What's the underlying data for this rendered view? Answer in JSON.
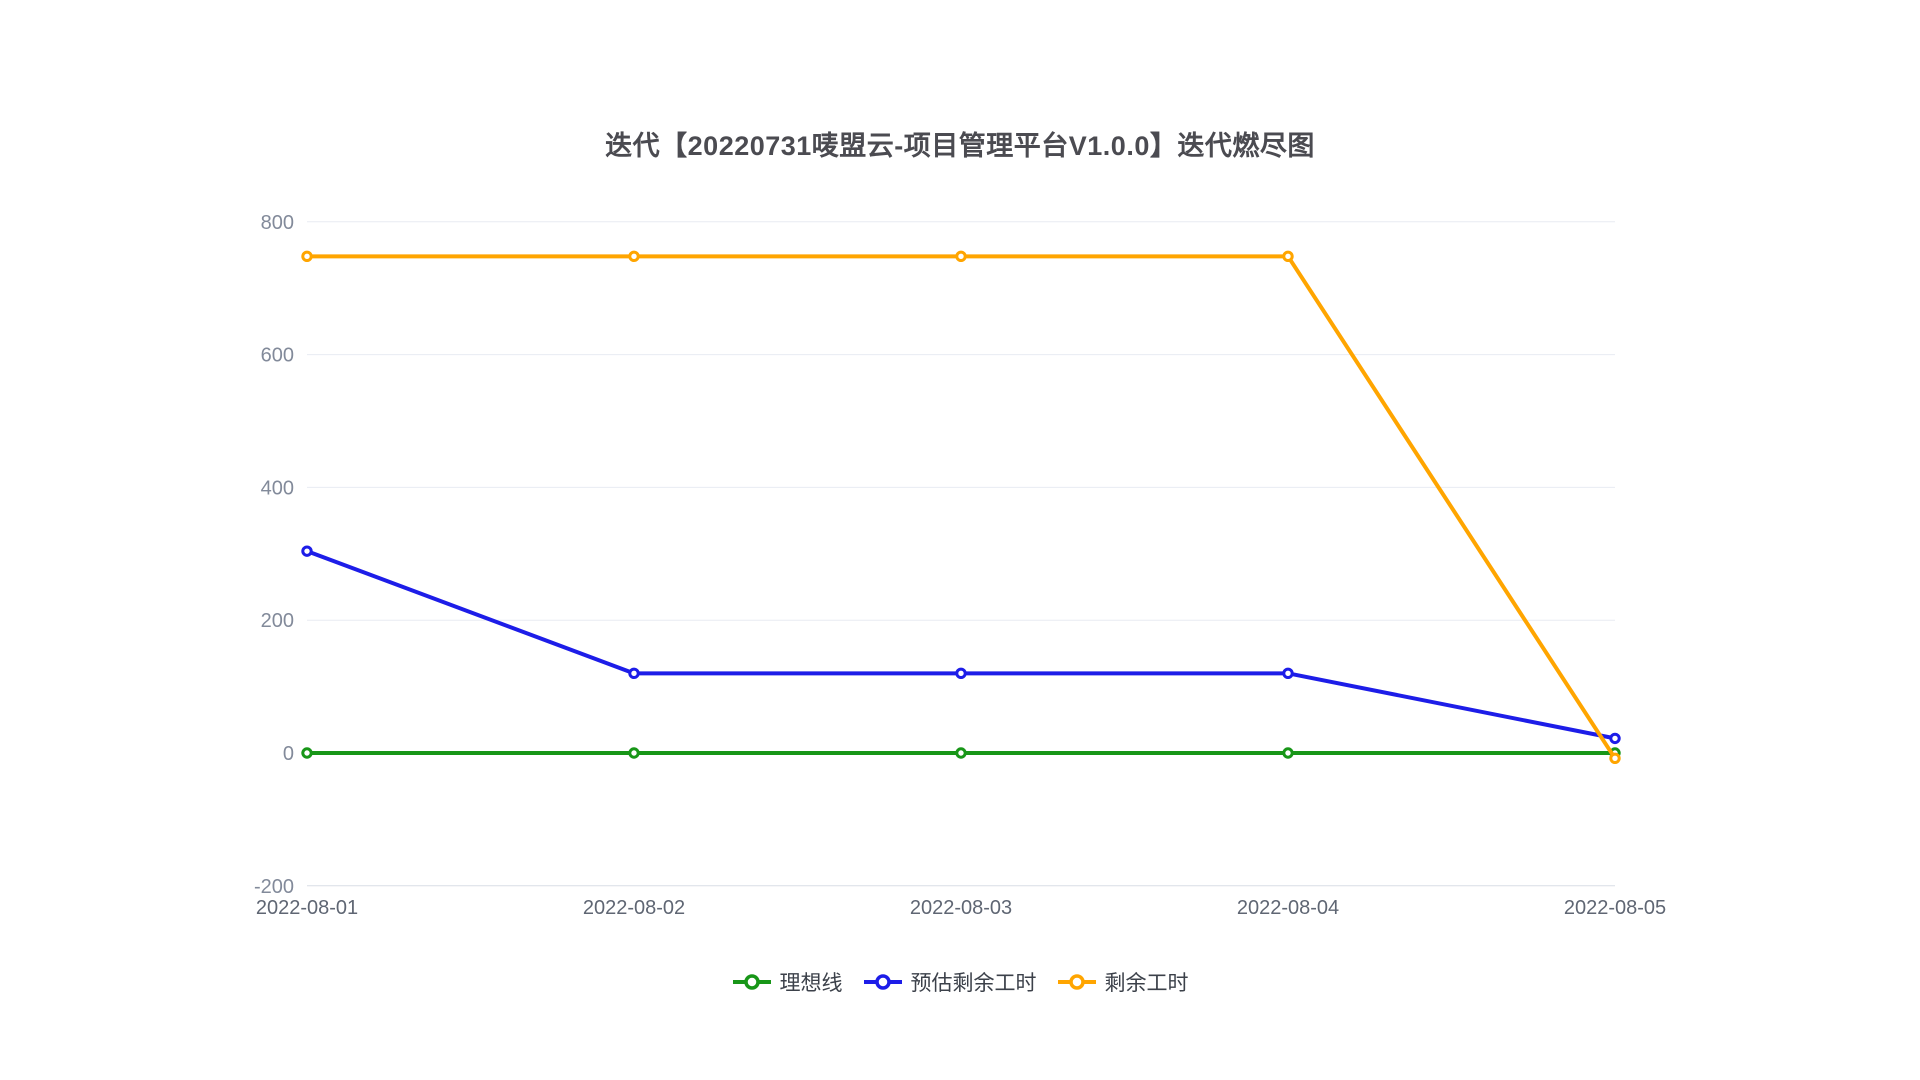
{
  "page": {
    "background": "#ffffff"
  },
  "chart_data": {
    "type": "line",
    "title": "迭代【20220731唛盟云-项目管理平台V1.0.0】迭代燃尽图",
    "x_labels": [
      "2022-08-01",
      "2022-08-02",
      "2022-08-03",
      "2022-08-04",
      "2022-08-05"
    ],
    "y_ticks": [
      -200,
      0,
      200,
      400,
      600,
      800
    ],
    "ylim": [
      -200,
      800
    ],
    "grid": "horizontal-lines-only",
    "legend_position": "bottom-center",
    "marker_style": "hollow-circle",
    "series": [
      {
        "name": "理想线",
        "color": "#189618",
        "values": [
          0,
          0,
          0,
          0,
          0
        ]
      },
      {
        "name": "预估剩余工时",
        "color": "#1d1de8",
        "values": [
          304,
          120,
          120,
          120,
          22
        ]
      },
      {
        "name": "剩余工时",
        "color": "#ffa500",
        "values": [
          748,
          748,
          748,
          748,
          -8
        ]
      }
    ]
  }
}
